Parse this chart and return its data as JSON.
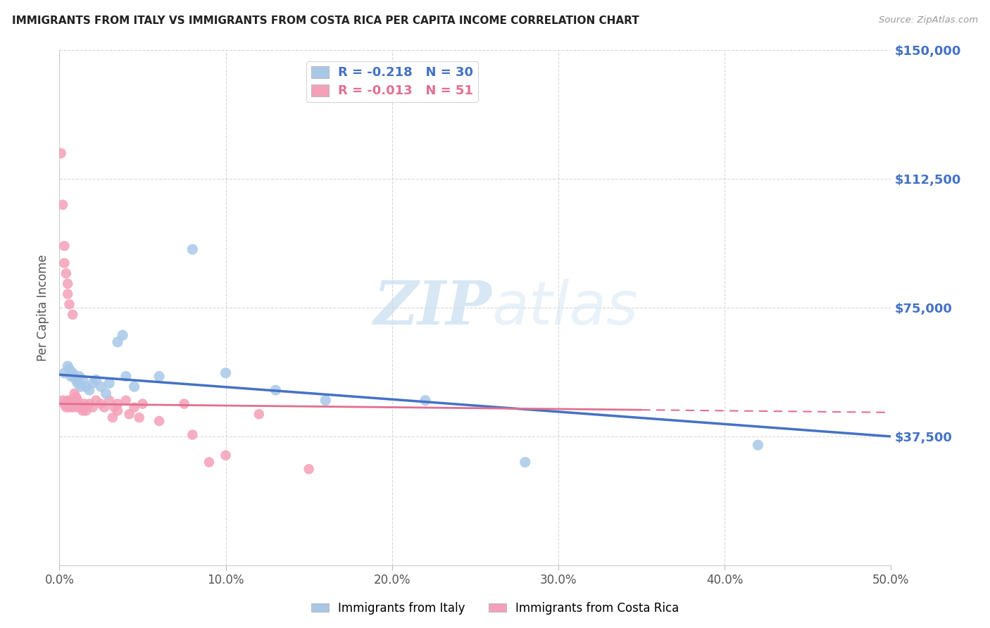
{
  "title": "IMMIGRANTS FROM ITALY VS IMMIGRANTS FROM COSTA RICA PER CAPITA INCOME CORRELATION CHART",
  "source": "Source: ZipAtlas.com",
  "ylabel": "Per Capita Income",
  "xlim": [
    0.0,
    0.5
  ],
  "ylim": [
    0,
    150000
  ],
  "yticks": [
    0,
    37500,
    75000,
    112500,
    150000
  ],
  "ytick_labels": [
    "",
    "$37,500",
    "$75,000",
    "$112,500",
    "$150,000"
  ],
  "xticks": [
    0.0,
    0.1,
    0.2,
    0.3,
    0.4,
    0.5
  ],
  "xtick_labels": [
    "0.0%",
    "10.0%",
    "20.0%",
    "30.0%",
    "40.0%",
    "50.0%"
  ],
  "italy_R": -0.218,
  "italy_N": 30,
  "costarica_R": -0.013,
  "costarica_N": 51,
  "italy_color": "#a8c8e8",
  "costarica_color": "#f4a0b8",
  "italy_line_color": "#4472c4",
  "costarica_line_color": "#e07090",
  "title_color": "#222222",
  "tick_color": "#4472c4",
  "watermark_zip": "ZIP",
  "watermark_atlas": "atlas",
  "background_color": "#ffffff",
  "grid_color": "#d8d8d8",
  "italy_x": [
    0.003,
    0.005,
    0.006,
    0.007,
    0.008,
    0.009,
    0.01,
    0.011,
    0.012,
    0.013,
    0.014,
    0.016,
    0.018,
    0.02,
    0.022,
    0.025,
    0.028,
    0.03,
    0.035,
    0.038,
    0.04,
    0.045,
    0.06,
    0.08,
    0.1,
    0.13,
    0.16,
    0.22,
    0.28,
    0.42
  ],
  "italy_y": [
    56000,
    58000,
    57000,
    55000,
    56000,
    55000,
    54000,
    53000,
    55000,
    52000,
    54000,
    52000,
    51000,
    53000,
    54000,
    52000,
    50000,
    53000,
    65000,
    67000,
    55000,
    52000,
    55000,
    92000,
    56000,
    51000,
    48000,
    48000,
    30000,
    35000
  ],
  "costarica_x": [
    0.001,
    0.002,
    0.002,
    0.003,
    0.003,
    0.003,
    0.004,
    0.004,
    0.005,
    0.005,
    0.005,
    0.006,
    0.006,
    0.007,
    0.007,
    0.008,
    0.008,
    0.009,
    0.009,
    0.01,
    0.01,
    0.011,
    0.011,
    0.012,
    0.013,
    0.014,
    0.015,
    0.015,
    0.016,
    0.018,
    0.02,
    0.022,
    0.025,
    0.027,
    0.03,
    0.032,
    0.033,
    0.035,
    0.04,
    0.042,
    0.045,
    0.048,
    0.06,
    0.075,
    0.08,
    0.09,
    0.1,
    0.12,
    0.15,
    0.05,
    0.035
  ],
  "costarica_y": [
    120000,
    105000,
    48000,
    93000,
    88000,
    47000,
    85000,
    46000,
    82000,
    79000,
    48000,
    76000,
    46000,
    48000,
    47000,
    73000,
    46000,
    50000,
    48000,
    49000,
    47000,
    46000,
    48000,
    47000,
    46000,
    45000,
    47000,
    46000,
    45000,
    47000,
    46000,
    48000,
    47000,
    46000,
    48000,
    43000,
    46000,
    47000,
    48000,
    44000,
    46000,
    43000,
    42000,
    47000,
    38000,
    30000,
    32000,
    44000,
    28000,
    47000,
    45000
  ],
  "italy_line_x0": 0.0,
  "italy_line_y0": 55500,
  "italy_line_x1": 0.5,
  "italy_line_y1": 37500,
  "cr_line_x0": 0.0,
  "cr_line_y0": 47000,
  "cr_line_x1": 0.5,
  "cr_line_y1": 44500
}
